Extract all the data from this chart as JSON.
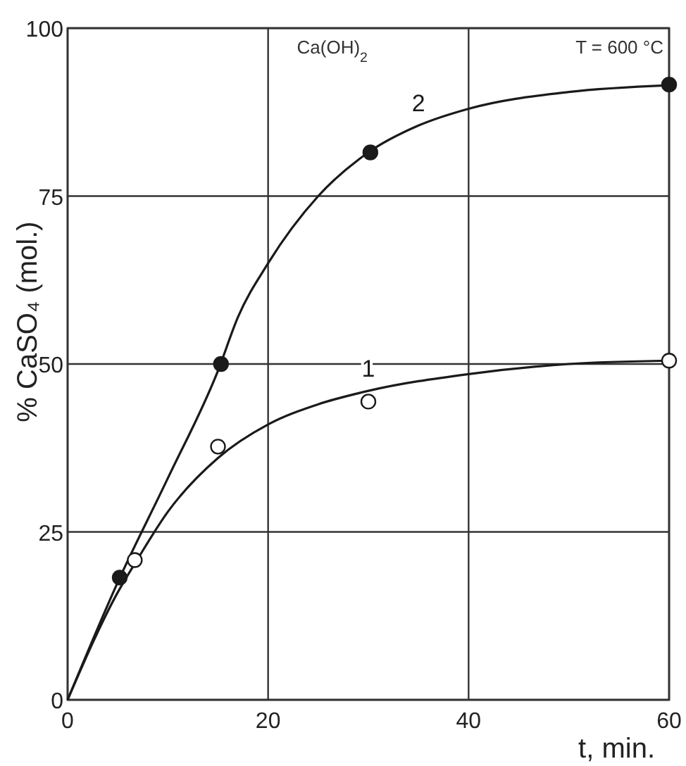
{
  "chart_data": {
    "type": "line",
    "ylabel": "% CaSO₄ (mol.)",
    "xlabel": "t, min.",
    "annotations": [
      "Ca(OH)$_{2}$",
      "T = 600 °C"
    ],
    "xlim": [
      0,
      60
    ],
    "ylim": [
      0,
      100
    ],
    "xticks": [
      0,
      20,
      40,
      60
    ],
    "yticks": [
      0,
      25,
      50,
      75,
      100
    ],
    "grid": true,
    "series": [
      {
        "name": "2",
        "color": "#1a1a1a",
        "marker": "none",
        "x": [
          0,
          5,
          10,
          15,
          17,
          20,
          25,
          30,
          35,
          40,
          50,
          60
        ],
        "values": [
          0,
          17.5,
          33,
          49,
          57,
          65,
          75,
          81.5,
          85.5,
          88,
          90.5,
          91.5
        ]
      },
      {
        "name": "1",
        "color": "#1a1a1a",
        "marker": "none",
        "x": [
          0,
          5,
          7,
          10,
          15,
          20,
          25,
          30,
          40,
          50,
          60
        ],
        "values": [
          0,
          16,
          21,
          28,
          36,
          41,
          44,
          46,
          48.5,
          50,
          50.5
        ]
      },
      {
        "type": "scatter",
        "color": "#1a1a1a",
        "marker": "circle",
        "x": [
          5.2,
          15.3,
          30.2,
          60
        ],
        "values": [
          18.2,
          50,
          81.5,
          91.6
        ]
      },
      {
        "type": "scatter",
        "color": "#ffffff",
        "marker": "circle",
        "x": [
          6.7,
          15,
          30,
          60
        ],
        "values": [
          20.8,
          37.7,
          44.4,
          50.5
        ]
      }
    ]
  }
}
